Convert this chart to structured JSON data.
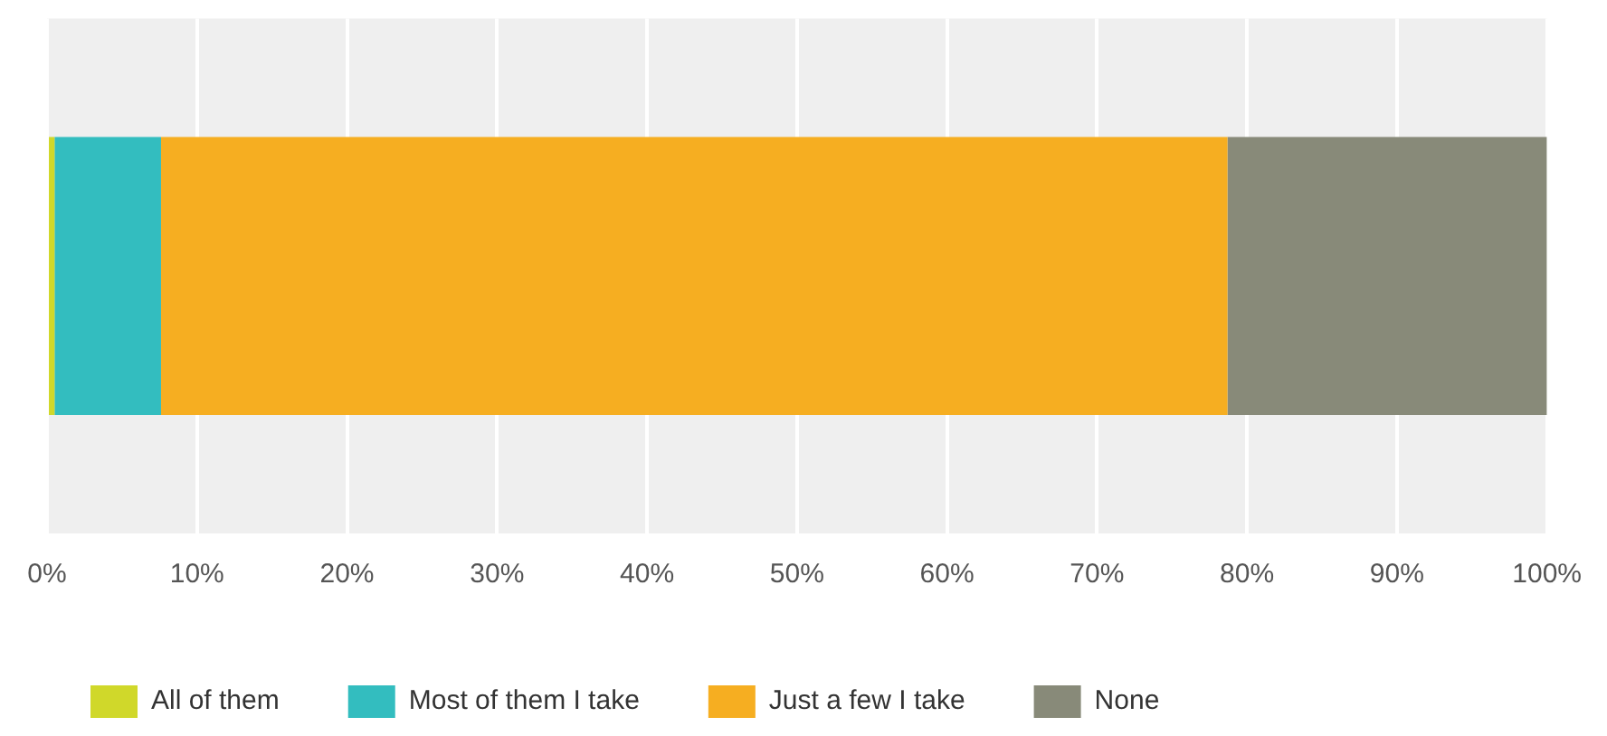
{
  "chart_data": {
    "type": "bar",
    "orientation": "horizontal",
    "stacked": true,
    "categories": [
      null
    ],
    "series": [
      {
        "name": "All of them",
        "color": "#d0d82a",
        "values": [
          0.5
        ]
      },
      {
        "name": "Most of them I take",
        "color": "#33bdbf",
        "values": [
          7.1
        ]
      },
      {
        "name": "Just a few I take",
        "color": "#f6ae21",
        "values": [
          71.1
        ]
      },
      {
        "name": "None",
        "color": "#888a79",
        "values": [
          21.3
        ]
      }
    ],
    "xlim": [
      0,
      100
    ],
    "xticks": [
      {
        "value": 0,
        "label": "0%"
      },
      {
        "value": 10,
        "label": "10%"
      },
      {
        "value": 20,
        "label": "20%"
      },
      {
        "value": 30,
        "label": "30%"
      },
      {
        "value": 40,
        "label": "40%"
      },
      {
        "value": 50,
        "label": "50%"
      },
      {
        "value": 60,
        "label": "60%"
      },
      {
        "value": 70,
        "label": "70%"
      },
      {
        "value": 80,
        "label": "80%"
      },
      {
        "value": 90,
        "label": "90%"
      },
      {
        "value": 100,
        "label": "100%"
      }
    ],
    "grid": "x",
    "legend": "bottom left"
  }
}
